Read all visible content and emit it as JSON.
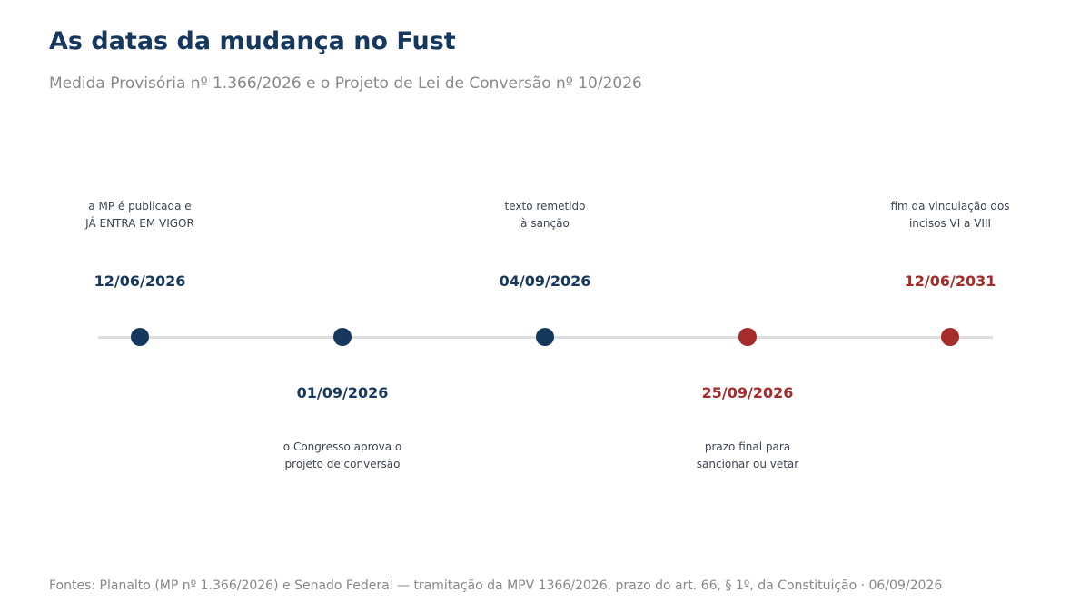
{
  "header": {
    "title": "As datas da mudança no Fust",
    "subtitle": "Medida Provisória nº 1.366/2026 e o Projeto de Lei de Conversão nº 10/2026"
  },
  "colors": {
    "completed": "#17385e",
    "pending": "#a62b2b",
    "axis": "#dddddd"
  },
  "timeline": {
    "milestones": [
      {
        "id": "publicacao",
        "date": "12/06/2026",
        "description": [
          "a MP é publicada e",
          "JÁ ENTRA EM VIGOR"
        ],
        "status": "completed",
        "label_side": "above"
      },
      {
        "id": "aprovacao",
        "date": "01/09/2026",
        "description": [
          "o Congresso aprova o",
          "projeto de conversão"
        ],
        "status": "completed",
        "label_side": "below"
      },
      {
        "id": "remessa",
        "date": "04/09/2026",
        "description": [
          "texto remetido",
          "à sanção"
        ],
        "status": "completed",
        "label_side": "above"
      },
      {
        "id": "prazo",
        "date": "25/09/2026",
        "description": [
          "prazo final para",
          "sancionar ou vetar"
        ],
        "status": "pending",
        "label_side": "below"
      },
      {
        "id": "fim-vinculacao",
        "date": "12/06/2031",
        "description": [
          "fim da vinculação dos",
          "incisos VI a VIII"
        ],
        "status": "pending",
        "label_side": "above"
      }
    ]
  },
  "footer": {
    "source": "Fontes: Planalto (MP nº 1.366/2026) e Senado Federal — tramitação da MPV 1366/2026, prazo do art. 66, § 1º, da Constituição · 06/09/2026"
  }
}
